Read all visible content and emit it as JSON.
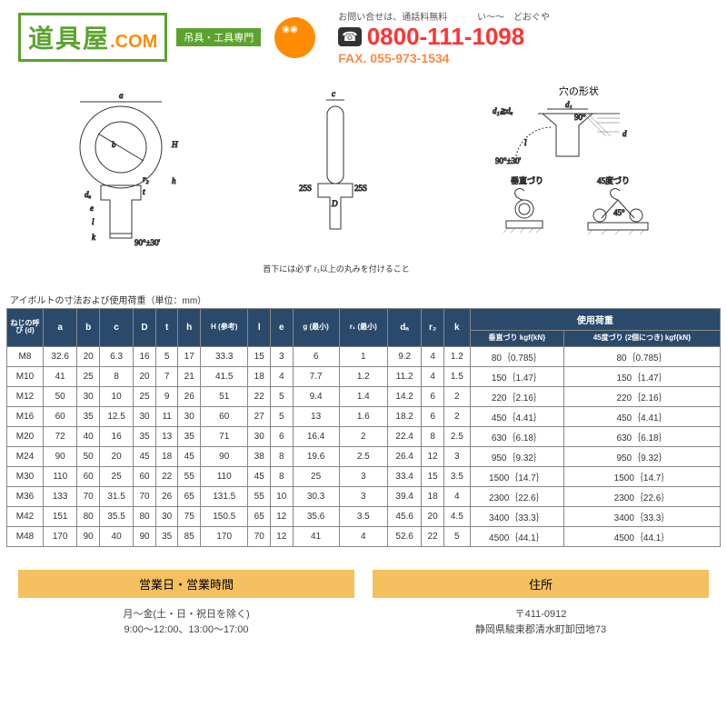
{
  "header": {
    "logo_main": "道具屋",
    "logo_com": ".COM",
    "logo_sub": "吊具・工具専門",
    "contact_label": "お問い合せは、通話料無料",
    "hiragana": "い〜〜　どおぐや",
    "freedial": "☎",
    "phone": "0800-111-1098",
    "fax": "FAX. 055-973-1534"
  },
  "diagrams": {
    "hole_title": "穴の形状",
    "d1_label": "d₁≧dₐ",
    "angle_label": "90°±30'",
    "note_text": "首下には必ず r₁以上の丸みを付けること",
    "vertical_label": "垂直づり",
    "angle45_label": "45度づり"
  },
  "table": {
    "caption": "アイボルトの寸法および使用荷重（単位：mm）",
    "headers": {
      "d": "ねじの呼び (d)",
      "a": "a",
      "b": "b",
      "c": "c",
      "D": "D",
      "t": "t",
      "h": "h",
      "H": "H (参考)",
      "l": "l",
      "e": "e",
      "g": "g (最小)",
      "r1": "r₁ (最小)",
      "da": "dₐ",
      "r2": "r₂",
      "k": "k",
      "load_group": "使用荷重",
      "vertical": "垂直づり kgf{kN}",
      "angle45": "45度づり (2個につき) kgf{kN}"
    },
    "rows": [
      [
        "M8",
        "32.6",
        "20",
        "6.3",
        "16",
        "5",
        "17",
        "33.3",
        "15",
        "3",
        "6",
        "1",
        "9.2",
        "4",
        "1.2",
        "80｛0.785｝",
        "80｛0.785｝"
      ],
      [
        "M10",
        "41",
        "25",
        "8",
        "20",
        "7",
        "21",
        "41.5",
        "18",
        "4",
        "7.7",
        "1.2",
        "11.2",
        "4",
        "1.5",
        "150｛1.47｝",
        "150｛1.47｝"
      ],
      [
        "M12",
        "50",
        "30",
        "10",
        "25",
        "9",
        "26",
        "51",
        "22",
        "5",
        "9.4",
        "1.4",
        "14.2",
        "6",
        "2",
        "220｛2.16｝",
        "220｛2.16｝"
      ],
      [
        "M16",
        "60",
        "35",
        "12.5",
        "30",
        "11",
        "30",
        "60",
        "27",
        "5",
        "13",
        "1.6",
        "18.2",
        "6",
        "2",
        "450｛4.41｝",
        "450｛4.41｝"
      ],
      [
        "M20",
        "72",
        "40",
        "16",
        "35",
        "13",
        "35",
        "71",
        "30",
        "6",
        "16.4",
        "2",
        "22.4",
        "8",
        "2.5",
        "630｛6.18｝",
        "630｛6.18｝"
      ],
      [
        "M24",
        "90",
        "50",
        "20",
        "45",
        "18",
        "45",
        "90",
        "38",
        "8",
        "19.6",
        "2.5",
        "26.4",
        "12",
        "3",
        "950｛9.32｝",
        "950｛9.32｝"
      ],
      [
        "M30",
        "110",
        "60",
        "25",
        "60",
        "22",
        "55",
        "110",
        "45",
        "8",
        "25",
        "3",
        "33.4",
        "15",
        "3.5",
        "1500｛14.7｝",
        "1500｛14.7｝"
      ],
      [
        "M36",
        "133",
        "70",
        "31.5",
        "70",
        "26",
        "65",
        "131.5",
        "55",
        "10",
        "30.3",
        "3",
        "39.4",
        "18",
        "4",
        "2300｛22.6｝",
        "2300｛22.6｝"
      ],
      [
        "M42",
        "151",
        "80",
        "35.5",
        "80",
        "30",
        "75",
        "150.5",
        "65",
        "12",
        "35.6",
        "3.5",
        "45.6",
        "20",
        "4.5",
        "3400｛33.3｝",
        "3400｛33.3｝"
      ],
      [
        "M48",
        "170",
        "90",
        "40",
        "90",
        "35",
        "85",
        "170",
        "70",
        "12",
        "41",
        "4",
        "52.6",
        "22",
        "5",
        "4500｛44.1｝",
        "4500｛44.1｝"
      ]
    ]
  },
  "footer": {
    "hours_title": "営業日・営業時間",
    "hours_line1": "月〜金(土・日・祝日を除く)",
    "hours_line2": "9:00〜12:00、13:00〜17:00",
    "address_title": "住所",
    "address_line1": "〒411-0912",
    "address_line2": "静岡県駿東郡清水町卸団地73"
  }
}
